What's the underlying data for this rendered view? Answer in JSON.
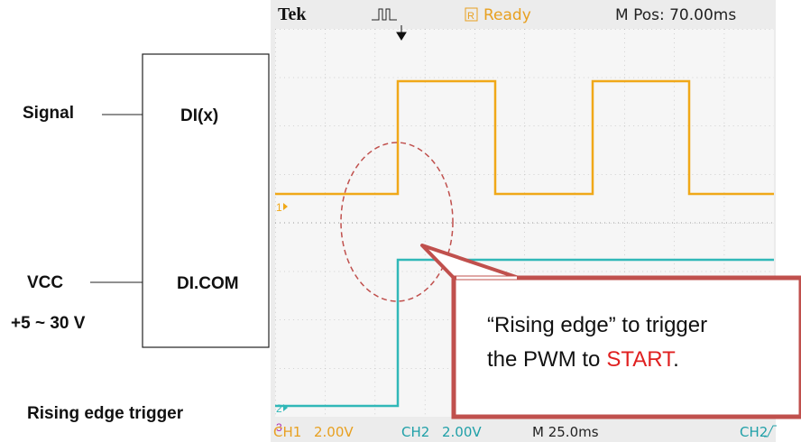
{
  "diagram": {
    "signal": "Signal",
    "dix": "DI(x)",
    "vcc": "VCC",
    "dicom": "DI.COM",
    "voltage": "+5 ~ 30 V",
    "caption": "Rising edge trigger"
  },
  "scope": {
    "brand": "Tek",
    "status_icon": "R",
    "status": "Ready",
    "position": "M Pos: 70.00ms",
    "ch1_marker": "1",
    "ch2_marker": "2",
    "ch3_marker": "3",
    "ch1": "CH1",
    "ch1_scale": "2.00V",
    "ch2": "CH2",
    "ch2_scale": "2.00V",
    "timebase": "M 25.0ms",
    "trigger_source": "CH2"
  },
  "callout": {
    "line1": "“Rising edge” to trigger",
    "line2_prefix": "the PWM to",
    "line2_highlight": "START",
    "line2_suffix": "."
  }
}
